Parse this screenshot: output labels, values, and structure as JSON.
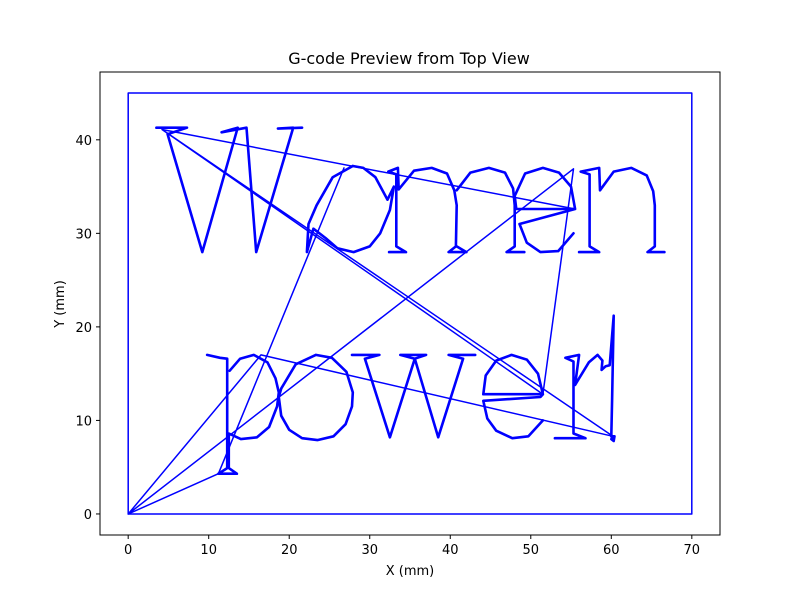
{
  "chart_data": {
    "type": "line",
    "title": "G-code Preview from Top View",
    "xlabel": "X (mm)",
    "ylabel": "Y (mm)",
    "xlim": [
      -3.5,
      73.5
    ],
    "ylim": [
      -2.25,
      47.25
    ],
    "xticks": [
      0,
      10,
      20,
      30,
      40,
      50,
      60,
      70
    ],
    "yticks": [
      0,
      10,
      20,
      30,
      40
    ],
    "grid": false,
    "legend": "none",
    "series_color": "#0000ff",
    "series": [
      {
        "values": [
          [
            0,
            0
          ],
          [
            70,
            0
          ],
          [
            70,
            45
          ],
          [
            0,
            45
          ],
          [
            0,
            0
          ]
        ]
      },
      {
        "values": [
          [
            0,
            0
          ],
          [
            55.3,
            36.9
          ],
          [
            51.5,
            12.8
          ],
          [
            4.2,
            41.1
          ],
          [
            55.5,
            32.6
          ],
          [
            4.2,
            41.1
          ],
          [
            60.2,
            8.3
          ],
          [
            16.5,
            17
          ],
          [
            0,
            0
          ],
          [
            11.2,
            4.3
          ],
          [
            26.8,
            37
          ]
        ]
      },
      {
        "values": [
          [
            3.5,
            41.3
          ],
          [
            7.3,
            41.3
          ],
          [
            4.9,
            40.6
          ],
          [
            9.2,
            28
          ],
          [
            13.6,
            41.3
          ],
          [
            11.6,
            40.8
          ],
          [
            14.7,
            41.3
          ],
          [
            15.9,
            28
          ],
          [
            20.5,
            41.3
          ],
          [
            18.6,
            41.2
          ],
          [
            21.6,
            41.3
          ]
        ]
      },
      {
        "values": [
          [
            27.9,
            37.2
          ],
          [
            25.4,
            36
          ],
          [
            23.4,
            33
          ],
          [
            22.4,
            31
          ],
          [
            22.2,
            28
          ],
          [
            23,
            30.5
          ],
          [
            24.5,
            29.5
          ],
          [
            26,
            28.4
          ],
          [
            28,
            28
          ],
          [
            30,
            28.6
          ],
          [
            31.3,
            30
          ],
          [
            32.5,
            32.5
          ],
          [
            33,
            35
          ],
          [
            32.2,
            33.6
          ],
          [
            30.7,
            36
          ],
          [
            29.2,
            37
          ],
          [
            27.9,
            37.2
          ]
        ]
      },
      {
        "values": [
          [
            32.4,
            28
          ],
          [
            34.5,
            28
          ],
          [
            33.3,
            28.6
          ],
          [
            33.3,
            36.3
          ],
          [
            32.3,
            36.6
          ],
          [
            33.5,
            37
          ],
          [
            33.6,
            34.7
          ],
          [
            35.5,
            36.7
          ],
          [
            37.7,
            37
          ],
          [
            39.6,
            36.4
          ],
          [
            40.5,
            34.6
          ],
          [
            40.8,
            33
          ],
          [
            40.7,
            28.6
          ],
          [
            39.8,
            28
          ],
          [
            42,
            28
          ],
          [
            40.8,
            28.6
          ]
        ]
      },
      {
        "values": [
          [
            40.8,
            34.6
          ],
          [
            42.5,
            36.5
          ],
          [
            44.8,
            37
          ],
          [
            46.8,
            36.5
          ],
          [
            47.8,
            34.8
          ],
          [
            48,
            33
          ],
          [
            48,
            28.6
          ],
          [
            47,
            28
          ],
          [
            49.2,
            28
          ]
        ]
      },
      {
        "values": [
          [
            55.5,
            32.6
          ],
          [
            55,
            35
          ],
          [
            53.5,
            36.5
          ],
          [
            51.5,
            37
          ],
          [
            49.3,
            36.4
          ],
          [
            48,
            34
          ],
          [
            48.2,
            32.6
          ],
          [
            55.5,
            32.6
          ],
          [
            48.6,
            31
          ],
          [
            49.5,
            29
          ],
          [
            51.2,
            28
          ],
          [
            53.4,
            28.1
          ],
          [
            55.3,
            30
          ]
        ]
      },
      {
        "values": [
          [
            56,
            28
          ],
          [
            58.5,
            28
          ],
          [
            57.3,
            28.6
          ],
          [
            57.3,
            36.3
          ],
          [
            56.2,
            36.6
          ],
          [
            58.5,
            37
          ],
          [
            58.6,
            34.6
          ],
          [
            60.3,
            36.6
          ],
          [
            62.5,
            37
          ],
          [
            64.4,
            36.2
          ],
          [
            65.2,
            34.5
          ],
          [
            65.4,
            33
          ],
          [
            65.4,
            28.6
          ],
          [
            64.5,
            28
          ],
          [
            66.6,
            28
          ]
        ]
      },
      {
        "values": [
          [
            9.8,
            17
          ],
          [
            11.4,
            16.7
          ],
          [
            12.3,
            16.6
          ],
          [
            12.3,
            4.9
          ],
          [
            11.2,
            4.3
          ],
          [
            13.5,
            4.3
          ],
          [
            12.5,
            4.9
          ],
          [
            12.5,
            8.6
          ],
          [
            14,
            8
          ],
          [
            16,
            8.2
          ],
          [
            17.5,
            9.3
          ],
          [
            18.5,
            11.5
          ],
          [
            18.7,
            13
          ],
          [
            18.3,
            14.5
          ],
          [
            17.3,
            16.2
          ],
          [
            15.6,
            17
          ],
          [
            13.9,
            16.6
          ],
          [
            12.6,
            15.3
          ]
        ]
      },
      {
        "values": [
          [
            23.3,
            17
          ],
          [
            20.8,
            16
          ],
          [
            19,
            13.4
          ],
          [
            18.7,
            12.5
          ],
          [
            19,
            10.5
          ],
          [
            20,
            9
          ],
          [
            21.6,
            8.1
          ],
          [
            23.5,
            7.9
          ],
          [
            25.5,
            8.3
          ],
          [
            27,
            9.6
          ],
          [
            27.8,
            11.5
          ],
          [
            27.9,
            13
          ],
          [
            27.1,
            15.2
          ],
          [
            25.3,
            16.7
          ],
          [
            23.3,
            17
          ]
        ]
      },
      {
        "values": [
          [
            27.8,
            17
          ],
          [
            31.2,
            17
          ],
          [
            29.4,
            16.6
          ],
          [
            32.5,
            8.2
          ],
          [
            35.6,
            16.6
          ],
          [
            33.8,
            17
          ],
          [
            37,
            17
          ],
          [
            35.6,
            16.6
          ],
          [
            38.5,
            8.2
          ],
          [
            41.6,
            16.6
          ],
          [
            39.8,
            17
          ],
          [
            43.1,
            17
          ]
        ]
      },
      {
        "values": [
          [
            51.5,
            12.8
          ],
          [
            44.1,
            12.8
          ],
          [
            44.4,
            14.8
          ],
          [
            45.7,
            16.4
          ],
          [
            47.6,
            17
          ],
          [
            49.5,
            16.5
          ],
          [
            50.9,
            15
          ],
          [
            51.5,
            12.8
          ],
          [
            51.2,
            12.5
          ],
          [
            44.1,
            12.1
          ],
          [
            44.6,
            10.2
          ],
          [
            45.7,
            8.9
          ],
          [
            47.7,
            8.1
          ],
          [
            49.7,
            8.3
          ],
          [
            51.5,
            10
          ]
        ]
      },
      {
        "values": [
          [
            53,
            8.1
          ],
          [
            56.8,
            8.1
          ],
          [
            55.3,
            8.6
          ],
          [
            55.3,
            16.3
          ],
          [
            54.3,
            16.7
          ],
          [
            56,
            17
          ],
          [
            55.5,
            13.8
          ],
          [
            57.2,
            16.2
          ],
          [
            58.3,
            17
          ],
          [
            58.9,
            16.4
          ],
          [
            58.8,
            15.4
          ],
          [
            59.3,
            15.8
          ],
          [
            59.8,
            15.9
          ],
          [
            60.3,
            21.2
          ],
          [
            60.1,
            12.2
          ],
          [
            60,
            8.3
          ],
          [
            60.2,
            8.3
          ],
          [
            60.4,
            8.3
          ],
          [
            60.3,
            7.8
          ],
          [
            60.0,
            8.0
          ],
          [
            60.2,
            8.3
          ]
        ]
      }
    ]
  }
}
